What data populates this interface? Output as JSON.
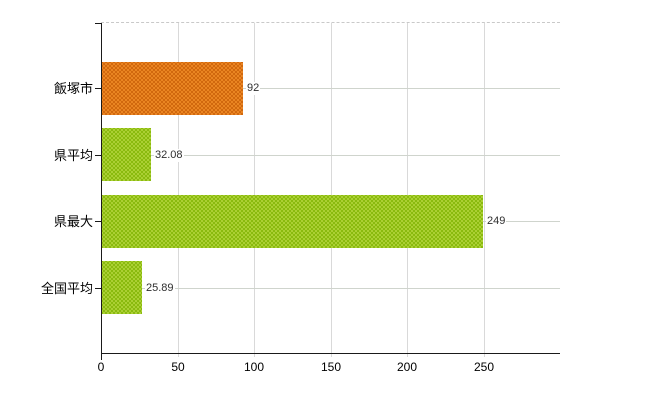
{
  "chart_data": {
    "type": "bar",
    "orientation": "horizontal",
    "title": "",
    "xlabel": "",
    "ylabel": "",
    "categories": [
      "飯塚市",
      "県平均",
      "県最大",
      "全国平均"
    ],
    "values": [
      92,
      32.08,
      249,
      25.89
    ],
    "value_labels": [
      "92",
      "32.08",
      "249",
      "25.89"
    ],
    "x_ticks": [
      "0",
      "50",
      "100",
      "150",
      "200",
      "250"
    ],
    "x_tick_values": [
      0,
      50,
      100,
      150,
      200,
      250
    ],
    "xlim": [
      0,
      300
    ],
    "grid": true,
    "legend_position": "none",
    "bar_styles": [
      {
        "name": "highlight-orange",
        "base": "#ea8522",
        "dot": "#c95f08"
      },
      {
        "name": "normal-green",
        "base": "#abd034",
        "dot": "#7fb303"
      },
      {
        "name": "normal-green",
        "base": "#abd034",
        "dot": "#7fb303"
      },
      {
        "name": "normal-green",
        "base": "#abd034",
        "dot": "#7fb303"
      }
    ]
  },
  "colors": {
    "background": "#ffffff",
    "axis": "#1a1a1a",
    "grid_vertical": "#d9d9d9",
    "grid_horizontal": "#cfd4cd",
    "plot_border_top": "#c9c9c9",
    "category_text": "#000000",
    "tick_text": "#000000",
    "value_text": "#2f2f2f"
  }
}
